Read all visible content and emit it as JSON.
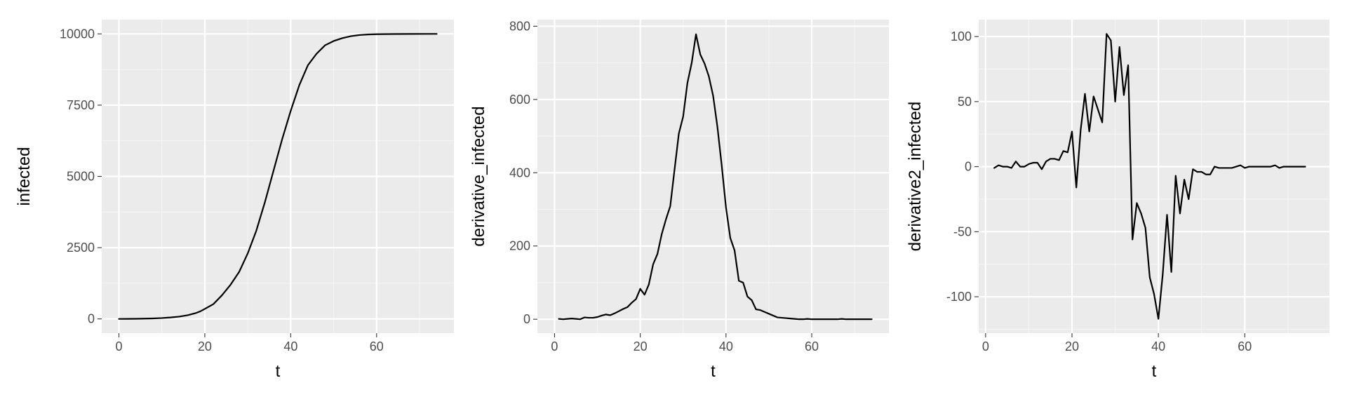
{
  "colors": {
    "panel_background": "#ebebeb",
    "grid_major": "#ffffff",
    "grid_minor": "#f5f5f5",
    "tick_text": "#4d4d4d",
    "line": "#000000"
  },
  "chart_data": [
    {
      "type": "line",
      "title": "",
      "xlabel": "t",
      "ylabel": "infected",
      "xlim": [
        -4,
        78
      ],
      "ylim": [
        -500,
        10500
      ],
      "xticks": [
        0,
        20,
        40,
        60
      ],
      "xtick_labels": [
        "0",
        "20",
        "40",
        "60"
      ],
      "yticks": [
        0,
        2500,
        5000,
        7500,
        10000
      ],
      "ytick_labels": [
        "0",
        "2500",
        "5000",
        "7500",
        "10000"
      ],
      "grid": true,
      "series": [
        {
          "x": [
            0,
            2,
            4,
            6,
            8,
            10,
            12,
            14,
            16,
            18,
            19,
            20,
            22,
            24,
            26,
            28,
            30,
            32,
            34,
            36,
            38,
            40,
            42,
            44,
            46,
            48,
            50,
            52,
            54,
            56,
            58,
            60,
            64,
            68,
            72,
            74
          ],
          "y": [
            0,
            2,
            5,
            10,
            17,
            30,
            50,
            80,
            130,
            210,
            270,
            350,
            520,
            830,
            1200,
            1650,
            2300,
            3100,
            4100,
            5200,
            6300,
            7300,
            8200,
            8900,
            9300,
            9600,
            9750,
            9850,
            9920,
            9960,
            9980,
            9990,
            9995,
            9998,
            10000,
            10000
          ]
        }
      ]
    },
    {
      "type": "line",
      "title": "",
      "xlabel": "t",
      "ylabel": "derivative_infected",
      "xlim": [
        -4,
        78
      ],
      "ylim": [
        -38,
        818
      ],
      "xticks": [
        0,
        20,
        40,
        60
      ],
      "xtick_labels": [
        "0",
        "20",
        "40",
        "60"
      ],
      "yticks": [
        0,
        200,
        400,
        600,
        800
      ],
      "ytick_labels": [
        "0",
        "200",
        "400",
        "600",
        "800"
      ],
      "grid": true,
      "series": [
        {
          "x": [
            1,
            2,
            3,
            4,
            5,
            6,
            7,
            8,
            9,
            10,
            11,
            12,
            13,
            14,
            15,
            16,
            17,
            18,
            19,
            20,
            21,
            22,
            23,
            24,
            25,
            26,
            27,
            28,
            29,
            30,
            31,
            32,
            33,
            34,
            35,
            36,
            37,
            38,
            39,
            40,
            41,
            42,
            43,
            44,
            45,
            46,
            47,
            48,
            49,
            50,
            51,
            52,
            53,
            54,
            55,
            56,
            57,
            58,
            59,
            60,
            61,
            62,
            63,
            64,
            65,
            66,
            67,
            68,
            69,
            70,
            71,
            72,
            73,
            74
          ],
          "y": [
            1,
            0,
            1,
            2,
            1,
            0,
            5,
            4,
            4,
            6,
            10,
            13,
            11,
            16,
            22,
            28,
            33,
            45,
            55,
            83,
            67,
            95,
            150,
            178,
            232,
            273,
            309,
            409,
            507,
            553,
            645,
            700,
            778,
            723,
            698,
            663,
            610,
            525,
            420,
            305,
            222,
            188,
            105,
            100,
            62,
            52,
            27,
            25,
            20,
            15,
            10,
            5,
            4,
            3,
            2,
            1,
            0,
            0,
            1,
            0,
            0,
            0,
            0,
            0,
            0,
            0,
            1,
            0,
            0,
            0,
            0,
            0,
            0,
            0
          ]
        }
      ]
    },
    {
      "type": "line",
      "title": "",
      "xlabel": "t",
      "ylabel": "derivative2_infected",
      "xlim": [
        -1.6,
        79.6
      ],
      "ylim": [
        -128,
        113
      ],
      "xticks": [
        0,
        20,
        40,
        60
      ],
      "xtick_labels": [
        "0",
        "20",
        "40",
        "60"
      ],
      "yticks": [
        -100,
        -50,
        0,
        50,
        100
      ],
      "ytick_labels": [
        "-100",
        "-50",
        "0",
        "50",
        "100"
      ],
      "grid": true,
      "series": [
        {
          "x": [
            2,
            3,
            4,
            5,
            6,
            7,
            8,
            9,
            10,
            11,
            12,
            13,
            14,
            15,
            16,
            17,
            18,
            19,
            20,
            21,
            22,
            23,
            24,
            25,
            26,
            27,
            28,
            29,
            30,
            31,
            32,
            33,
            34,
            35,
            36,
            37,
            38,
            39,
            40,
            41,
            42,
            43,
            44,
            45,
            46,
            47,
            48,
            49,
            50,
            51,
            52,
            53,
            54,
            55,
            56,
            57,
            58,
            59,
            60,
            61,
            62,
            63,
            64,
            65,
            66,
            67,
            68,
            69,
            70,
            71,
            72,
            73,
            74
          ],
          "y": [
            -1,
            1,
            0,
            0,
            -1,
            4,
            0,
            0,
            2,
            3,
            3,
            -2,
            4,
            6,
            6,
            5,
            12,
            11,
            27,
            -16,
            28,
            56,
            27,
            54,
            44,
            34,
            102,
            97,
            50,
            92,
            55,
            78,
            -56,
            -28,
            -36,
            -47,
            -85,
            -98,
            -117,
            -83,
            -37,
            -81,
            -7,
            -36,
            -10,
            -25,
            -2,
            -4,
            -4,
            -6,
            -6,
            0,
            -1,
            -1,
            -1,
            -1,
            0,
            1,
            -1,
            0,
            0,
            0,
            0,
            0,
            0,
            1,
            -1,
            0,
            0,
            0,
            0,
            0,
            0
          ]
        }
      ]
    }
  ]
}
